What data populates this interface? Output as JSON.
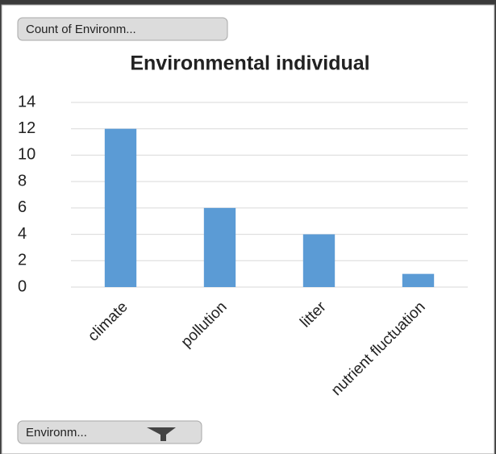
{
  "chart_data": {
    "type": "bar",
    "title": "Environmental individual",
    "categories": [
      "climate",
      "pollution",
      "litter",
      "nutrient fluctuation"
    ],
    "values": [
      12,
      6,
      4,
      1
    ],
    "color": "#5b9bd5",
    "ylim": [
      0,
      14
    ],
    "yticks": [
      0,
      2,
      4,
      6,
      8,
      10,
      12,
      14
    ],
    "grid": true
  },
  "buttons": {
    "value_field": "Count of Environm...",
    "axis_field": "Environm..."
  }
}
